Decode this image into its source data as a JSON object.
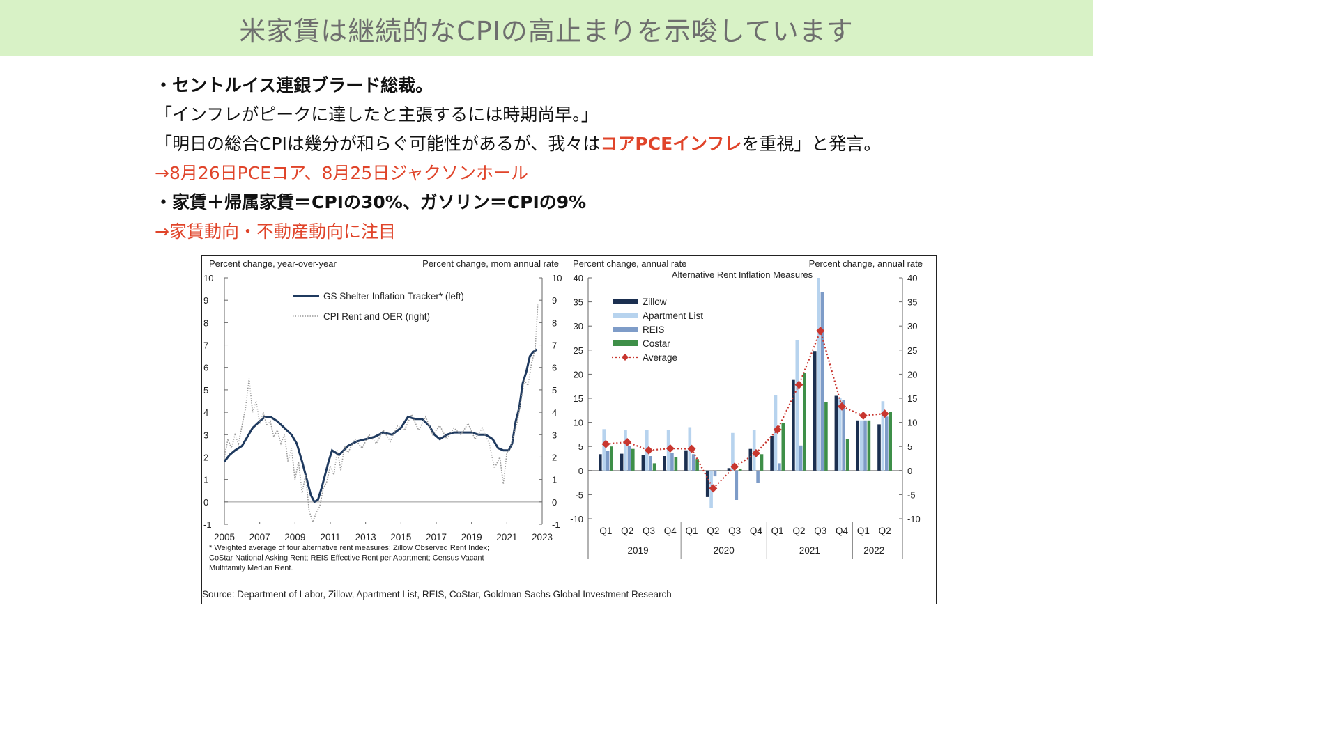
{
  "header": {
    "title": "米家賃は継続的なCPIの高止まりを示唆しています"
  },
  "bullets": {
    "line1": "・セントルイス連銀ブラード総裁。",
    "line2": "「インフレがピークに達したと主張するには時期尚早。」",
    "line3_pre": "「明日の総合CPIは幾分が和らぐ可能性があるが、我々は",
    "line3_em": "コアPCEインフレ",
    "line3_post": "を重視」と発言。",
    "line4": "→8月26日PCEコア、8月25日ジャクソンホール",
    "line5": "・家賃＋帰属家賃＝CPIの30%、ガソリン＝CPIの9%",
    "line6": "→家賃動向・不動産動向に注目"
  },
  "colors": {
    "banner": "#d8f2c6",
    "accent_red": "#e0442a"
  },
  "figure": {
    "source": "Source: Department of Labor, Zillow, Apartment List, REIS, CoStar, Goldman Sachs Global Investment Research"
  },
  "chart_data": [
    {
      "type": "line",
      "left_axis_title": "Percent change, year-over-year",
      "right_axis_title": "Percent change, mom annual rate",
      "ylim": [
        -1,
        10
      ],
      "y_ticks": [
        -1,
        0,
        1,
        2,
        3,
        4,
        5,
        6,
        7,
        8,
        9,
        10
      ],
      "x_ticks": [
        "2005",
        "2007",
        "2009",
        "2011",
        "2013",
        "2015",
        "2017",
        "2019",
        "2021",
        "2023"
      ],
      "legend_position": "top-center",
      "footnote": [
        "* Weighted  average of four alternative rent measures: Zillow Observed Rent Index;",
        "CoStar National  Asking Rent; REIS  Effective Rent per Apartment;  Census Vacant",
        "Multifamily  Median  Rent."
      ],
      "series": [
        {
          "name": "GS Shelter Inflation Tracker* (left)",
          "style": "solid",
          "color": "#1f3a5f",
          "points": [
            [
              2005.0,
              1.8
            ],
            [
              2005.3,
              2.1
            ],
            [
              2005.6,
              2.3
            ],
            [
              2006.0,
              2.5
            ],
            [
              2006.3,
              2.9
            ],
            [
              2006.6,
              3.3
            ],
            [
              2007.0,
              3.6
            ],
            [
              2007.3,
              3.8
            ],
            [
              2007.6,
              3.8
            ],
            [
              2008.0,
              3.6
            ],
            [
              2008.4,
              3.3
            ],
            [
              2008.8,
              3.0
            ],
            [
              2009.1,
              2.6
            ],
            [
              2009.4,
              1.8
            ],
            [
              2009.7,
              0.9
            ],
            [
              2009.9,
              0.3
            ],
            [
              2010.1,
              0.0
            ],
            [
              2010.3,
              0.1
            ],
            [
              2010.5,
              0.6
            ],
            [
              2010.7,
              1.2
            ],
            [
              2010.9,
              1.8
            ],
            [
              2011.1,
              2.3
            ],
            [
              2011.5,
              2.1
            ],
            [
              2012.0,
              2.5
            ],
            [
              2012.5,
              2.7
            ],
            [
              2013.0,
              2.8
            ],
            [
              2013.5,
              2.9
            ],
            [
              2014.0,
              3.1
            ],
            [
              2014.5,
              3.0
            ],
            [
              2015.0,
              3.3
            ],
            [
              2015.4,
              3.8
            ],
            [
              2015.8,
              3.7
            ],
            [
              2016.2,
              3.7
            ],
            [
              2016.6,
              3.4
            ],
            [
              2016.9,
              3.0
            ],
            [
              2017.2,
              2.8
            ],
            [
              2017.6,
              3.0
            ],
            [
              2018.0,
              3.1
            ],
            [
              2018.5,
              3.1
            ],
            [
              2019.0,
              3.1
            ],
            [
              2019.4,
              3.0
            ],
            [
              2019.8,
              3.0
            ],
            [
              2020.2,
              2.8
            ],
            [
              2020.5,
              2.4
            ],
            [
              2020.8,
              2.3
            ],
            [
              2021.1,
              2.3
            ],
            [
              2021.3,
              2.6
            ],
            [
              2021.5,
              3.6
            ],
            [
              2021.7,
              4.2
            ],
            [
              2021.9,
              5.3
            ],
            [
              2022.1,
              5.8
            ],
            [
              2022.3,
              6.5
            ],
            [
              2022.5,
              6.7
            ],
            [
              2022.7,
              6.8
            ]
          ]
        },
        {
          "name": "CPI Rent and OER (right)",
          "style": "dotted",
          "color": "#9a9a9a",
          "points": [
            [
              2005.0,
              2.0
            ],
            [
              2005.2,
              2.8
            ],
            [
              2005.4,
              2.4
            ],
            [
              2005.6,
              3.0
            ],
            [
              2005.8,
              2.6
            ],
            [
              2006.0,
              3.4
            ],
            [
              2006.2,
              4.2
            ],
            [
              2006.4,
              5.5
            ],
            [
              2006.6,
              4.0
            ],
            [
              2006.8,
              4.5
            ],
            [
              2007.0,
              3.5
            ],
            [
              2007.2,
              4.0
            ],
            [
              2007.4,
              3.4
            ],
            [
              2007.6,
              3.6
            ],
            [
              2007.8,
              2.9
            ],
            [
              2008.0,
              3.2
            ],
            [
              2008.2,
              2.6
            ],
            [
              2008.4,
              3.0
            ],
            [
              2008.6,
              1.8
            ],
            [
              2008.8,
              2.4
            ],
            [
              2009.0,
              1.0
            ],
            [
              2009.2,
              1.8
            ],
            [
              2009.4,
              0.4
            ],
            [
              2009.6,
              1.2
            ],
            [
              2009.8,
              -0.4
            ],
            [
              2010.0,
              -0.9
            ],
            [
              2010.2,
              -0.5
            ],
            [
              2010.4,
              -0.2
            ],
            [
              2010.6,
              0.6
            ],
            [
              2010.8,
              0.9
            ],
            [
              2011.0,
              1.6
            ],
            [
              2011.2,
              1.2
            ],
            [
              2011.4,
              2.3
            ],
            [
              2011.6,
              1.4
            ],
            [
              2011.8,
              2.5
            ],
            [
              2012.0,
              2.2
            ],
            [
              2012.4,
              2.8
            ],
            [
              2012.8,
              2.4
            ],
            [
              2013.2,
              3.0
            ],
            [
              2013.6,
              2.6
            ],
            [
              2014.0,
              3.2
            ],
            [
              2014.4,
              2.7
            ],
            [
              2014.8,
              3.4
            ],
            [
              2015.2,
              3.2
            ],
            [
              2015.6,
              3.9
            ],
            [
              2016.0,
              3.2
            ],
            [
              2016.4,
              3.8
            ],
            [
              2016.8,
              3.0
            ],
            [
              2017.2,
              3.4
            ],
            [
              2017.6,
              2.8
            ],
            [
              2018.0,
              3.3
            ],
            [
              2018.4,
              3.0
            ],
            [
              2018.8,
              3.5
            ],
            [
              2019.2,
              2.8
            ],
            [
              2019.6,
              3.3
            ],
            [
              2020.0,
              2.6
            ],
            [
              2020.3,
              1.5
            ],
            [
              2020.6,
              2.0
            ],
            [
              2020.8,
              0.8
            ],
            [
              2021.0,
              2.2
            ],
            [
              2021.2,
              2.4
            ],
            [
              2021.4,
              3.0
            ],
            [
              2021.6,
              3.6
            ],
            [
              2021.8,
              4.5
            ],
            [
              2022.0,
              5.4
            ],
            [
              2022.2,
              5.2
            ],
            [
              2022.4,
              6.2
            ],
            [
              2022.6,
              6.8
            ],
            [
              2022.75,
              8.8
            ]
          ]
        }
      ]
    },
    {
      "type": "bar",
      "title": "Alternative  Rent Inflation  Measures",
      "left_axis_title": "Percent change, annual rate",
      "right_axis_title": "Percent change, annual rate",
      "ylim": [
        -10,
        40
      ],
      "y_ticks": [
        -10,
        -5,
        0,
        5,
        10,
        15,
        20,
        25,
        30,
        35,
        40
      ],
      "legend_position": "top-left",
      "categories": [
        "Q1",
        "Q2",
        "Q3",
        "Q4",
        "Q1",
        "Q2",
        "Q3",
        "Q4",
        "Q1",
        "Q2",
        "Q3",
        "Q4",
        "Q1",
        "Q2"
      ],
      "year_groups": [
        {
          "label": "2019",
          "count": 4
        },
        {
          "label": "2020",
          "count": 4
        },
        {
          "label": "2021",
          "count": 4
        },
        {
          "label": "2022",
          "count": 2
        }
      ],
      "series": [
        {
          "name": "Zillow",
          "color": "#1b2f50",
          "values": [
            3.4,
            3.5,
            3.3,
            3.0,
            4.2,
            -5.5,
            0.5,
            4.5,
            7.2,
            18.8,
            24.8,
            15.5,
            10.4,
            9.6
          ]
        },
        {
          "name": "Apartment List",
          "color": "#b7d3ee",
          "values": [
            8.6,
            8.5,
            8.4,
            8.4,
            9.0,
            -7.8,
            7.8,
            8.5,
            15.6,
            27.0,
            40.0,
            15.0,
            10.4,
            14.4
          ]
        },
        {
          "name": "REIS",
          "color": "#7e9cc8",
          "values": [
            4.1,
            5.1,
            3.0,
            3.6,
            3.4,
            -1.2,
            -6.1,
            -2.5,
            1.5,
            5.2,
            37.0,
            14.7,
            10.4,
            11.2
          ]
        },
        {
          "name": "Costar",
          "color": "#3e8f48",
          "values": [
            5.0,
            4.5,
            1.5,
            2.8,
            2.4,
            0.0,
            0.3,
            3.4,
            9.8,
            20.2,
            14.2,
            6.5,
            10.4,
            12.2
          ]
        },
        {
          "name": "Average",
          "color": "#c8362f",
          "style": "dotted-with-diamonds",
          "values": [
            5.5,
            5.9,
            4.2,
            4.6,
            4.5,
            -3.7,
            0.8,
            3.6,
            8.5,
            17.8,
            29.0,
            13.3,
            11.4,
            11.8
          ]
        }
      ]
    }
  ]
}
